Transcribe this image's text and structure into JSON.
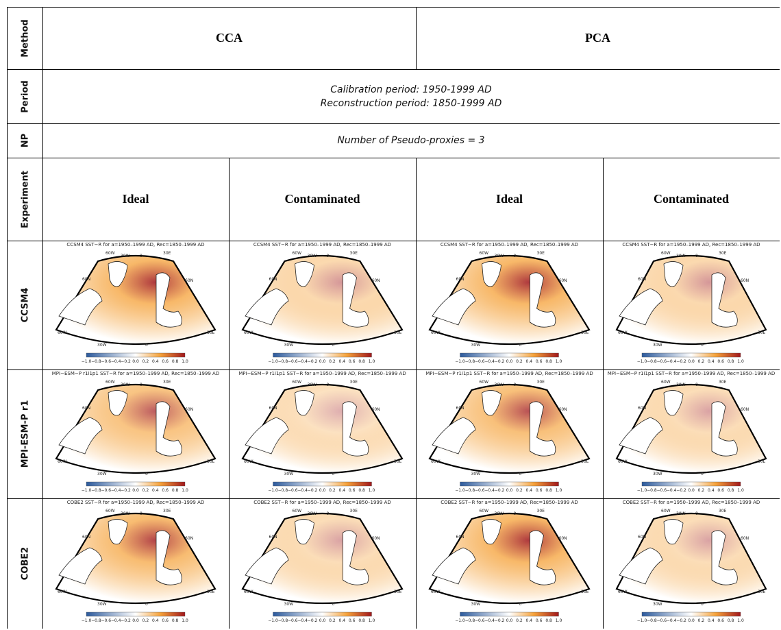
{
  "row_headers": {
    "method": "Method",
    "period": "Period",
    "np": "NP",
    "experiment": "Experiment",
    "models": [
      "CCSM4",
      "MPI-ESM-P r1",
      "COBE2"
    ]
  },
  "methods": [
    "CCA",
    "PCA"
  ],
  "period": {
    "calibration": "Calibration period: 1950-1999 AD",
    "reconstruction": "Reconstruction period: 1850-1999 AD"
  },
  "np_text": "Number of Pseudo-proxies = 3",
  "experiments": [
    "Ideal",
    "Contaminated",
    "Ideal",
    "Contaminated"
  ],
  "panel_titles": [
    [
      "CCSM4 SST−R for a=1950–1999 AD, Rec=1850–1999 AD",
      "CCSM4 SST−R for a=1950–1999 AD, Rec=1850–1999 AD",
      "CCSM4 SST−R for a=1950–1999 AD, Rec=1850–1999 AD",
      "CCSM4 SST−R for a=1950–1999 AD, Rec=1850–1999 AD"
    ],
    [
      "MPI−ESM−P r1i1p1 SST−R for a=1950–1999 AD, Rec=1850–1999 AD",
      "MPI−ESM−P r1i1p1 SST−R for a=1950–1999 AD, Rec=1850–1999 AD",
      "MPI−ESM−P r1i1p1 SST−R for a=1950–1999 AD, Rec=1850–1999 AD",
      "MPI−ESM−P r1i1p1 SST−R for a=1950–1999 AD, Rec=1850–1999 AD"
    ],
    [
      "COBE2 SST−R for a=1950–1999 AD, Rec=1850–1999 AD",
      "COBE2 SST−R for a=1950–1999 AD, Rec=1850–1999 AD",
      "COBE2 SST−R for a=1950–1999 AD, Rec=1850–1999 AD",
      "COBE2 SST−R for a=1950–1999 AD, Rec=1850–1999 AD"
    ]
  ],
  "map_labels": {
    "top": [
      "60W",
      "30W",
      "0",
      "30E"
    ],
    "left": [
      "60N",
      "60W"
    ],
    "right": [
      "60N",
      "30E"
    ],
    "bottom": [
      "30W",
      "0"
    ]
  },
  "colorbar_ticks": [
    "−1.0",
    "−0.8",
    "−0.6",
    "−0.4",
    "−0.2",
    "0.0",
    "0.2",
    "0.4",
    "0.6",
    "0.8",
    "1.0"
  ],
  "colors": {
    "neg_strong": "#2c5a9c",
    "neutral": "#ffffff",
    "pos_mid": "#f5a23a",
    "pos_strong": "#a1171c"
  }
}
